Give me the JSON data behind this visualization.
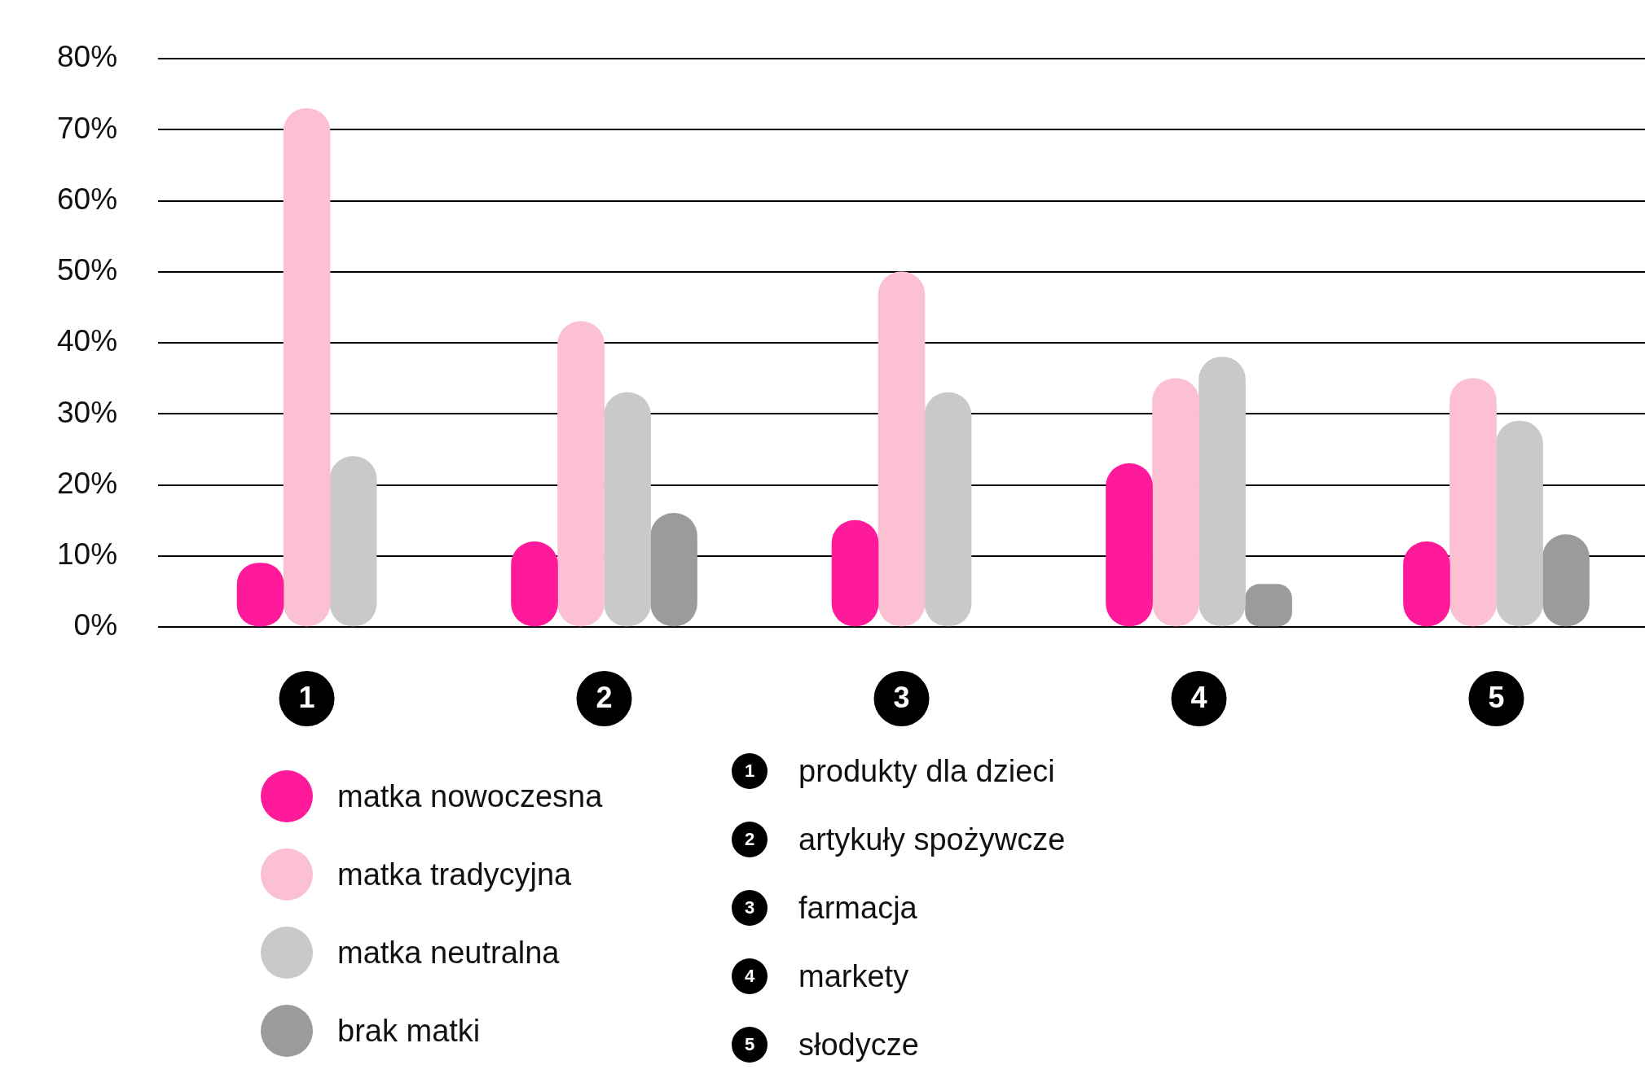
{
  "chart_data": {
    "type": "bar",
    "categories": [
      "1",
      "2",
      "3",
      "4",
      "5"
    ],
    "series": [
      {
        "name": "matka nowoczesna",
        "color": "#ff1a9c",
        "values": [
          9,
          12,
          15,
          23,
          12
        ]
      },
      {
        "name": "matka tradycyjna",
        "color": "#fcc0d3",
        "values": [
          73,
          43,
          50,
          35,
          35
        ]
      },
      {
        "name": "matka neutralna",
        "color": "#c9c9c9",
        "values": [
          24,
          33,
          33,
          38,
          29
        ]
      },
      {
        "name": "brak matki",
        "color": "#9b9b9b",
        "values": [
          null,
          16,
          null,
          6,
          13
        ]
      }
    ],
    "ylim": [
      0,
      80
    ],
    "yticks": [
      {
        "value": 0,
        "label": "0%"
      },
      {
        "value": 10,
        "label": "10%"
      },
      {
        "value": 20,
        "label": "20%"
      },
      {
        "value": 30,
        "label": "30%"
      },
      {
        "value": 40,
        "label": "40%"
      },
      {
        "value": 50,
        "label": "50%"
      },
      {
        "value": 60,
        "label": "60%"
      },
      {
        "value": 70,
        "label": "70%"
      },
      {
        "value": 80,
        "label": "80%"
      }
    ],
    "grid": "y",
    "legend": "bottom left",
    "annotations": [
      "produkty dla dzieci",
      "artykuły spożywcze",
      "farmacja",
      "markety",
      "słodycze"
    ]
  }
}
